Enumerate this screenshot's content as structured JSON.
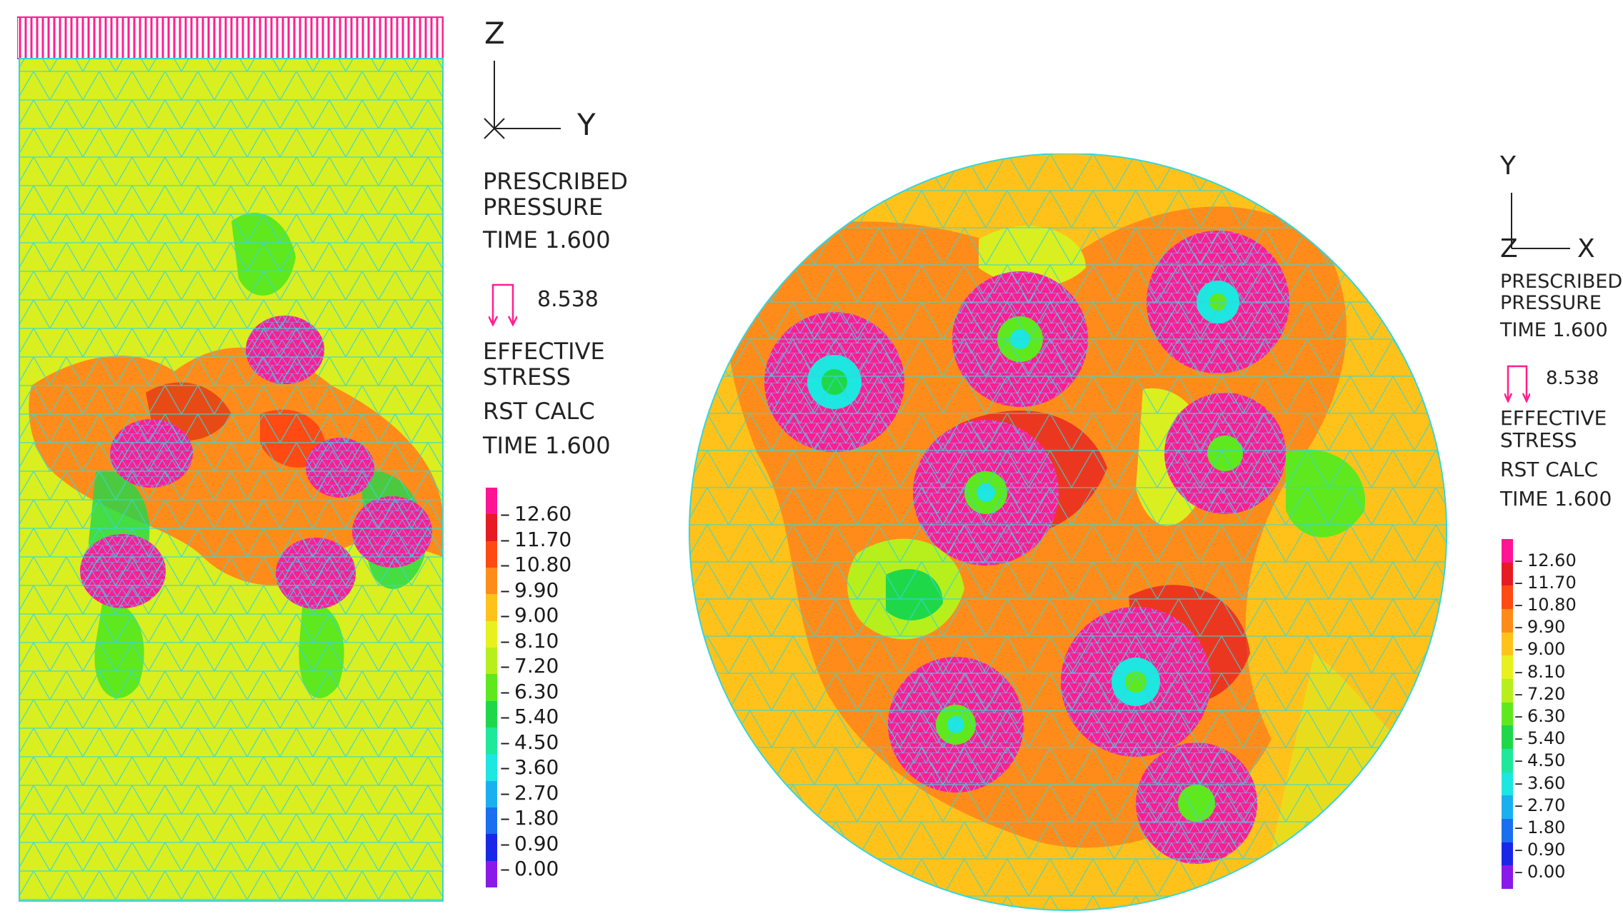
{
  "left_panel": {
    "axes": {
      "vertical": "Z",
      "horizontal": "Y",
      "out_of_plane": "X"
    },
    "header": [
      "PRESCRIBED",
      "PRESSURE"
    ],
    "time1": "TIME 1.600",
    "pressure_value": "8.538",
    "stress_title": [
      "EFFECTIVE",
      "STRESS"
    ],
    "calc": "RST CALC",
    "time2": "TIME 1.600"
  },
  "right_panel": {
    "axes": {
      "vertical": "Y",
      "horizontal": "X",
      "out_of_plane": "Z"
    },
    "header": [
      "PRESCRIBED",
      "PRESSURE"
    ],
    "time1": "TIME 1.600",
    "pressure_value": "8.538",
    "stress_title": [
      "EFFECTIVE",
      "STRESS"
    ],
    "calc": "RST CALC",
    "time2": "TIME 1.600"
  },
  "scale_labels": [
    "12.60",
    "11.70",
    "10.80",
    "9.90",
    "9.00",
    "8.10",
    "7.20",
    "6.30",
    "5.40",
    "4.50",
    "3.60",
    "2.70",
    "1.80",
    "0.90",
    "0.00"
  ],
  "scale_colors": [
    "#ff1493",
    "#e61b23",
    "#ff4a14",
    "#ff8c1a",
    "#ffc21a",
    "#e8f01e",
    "#b6ef1c",
    "#5fe81e",
    "#1fd84a",
    "#1ee89a",
    "#1ee6e0",
    "#1ab0f0",
    "#1a6ef0",
    "#1a26e8",
    "#8a1ae8"
  ],
  "colors": {
    "mesh": "#33d6dc",
    "inclusion": "#ff1f8f",
    "background_field": "#d9ef1f",
    "pressure_arrow": "#ff1f8f"
  }
}
